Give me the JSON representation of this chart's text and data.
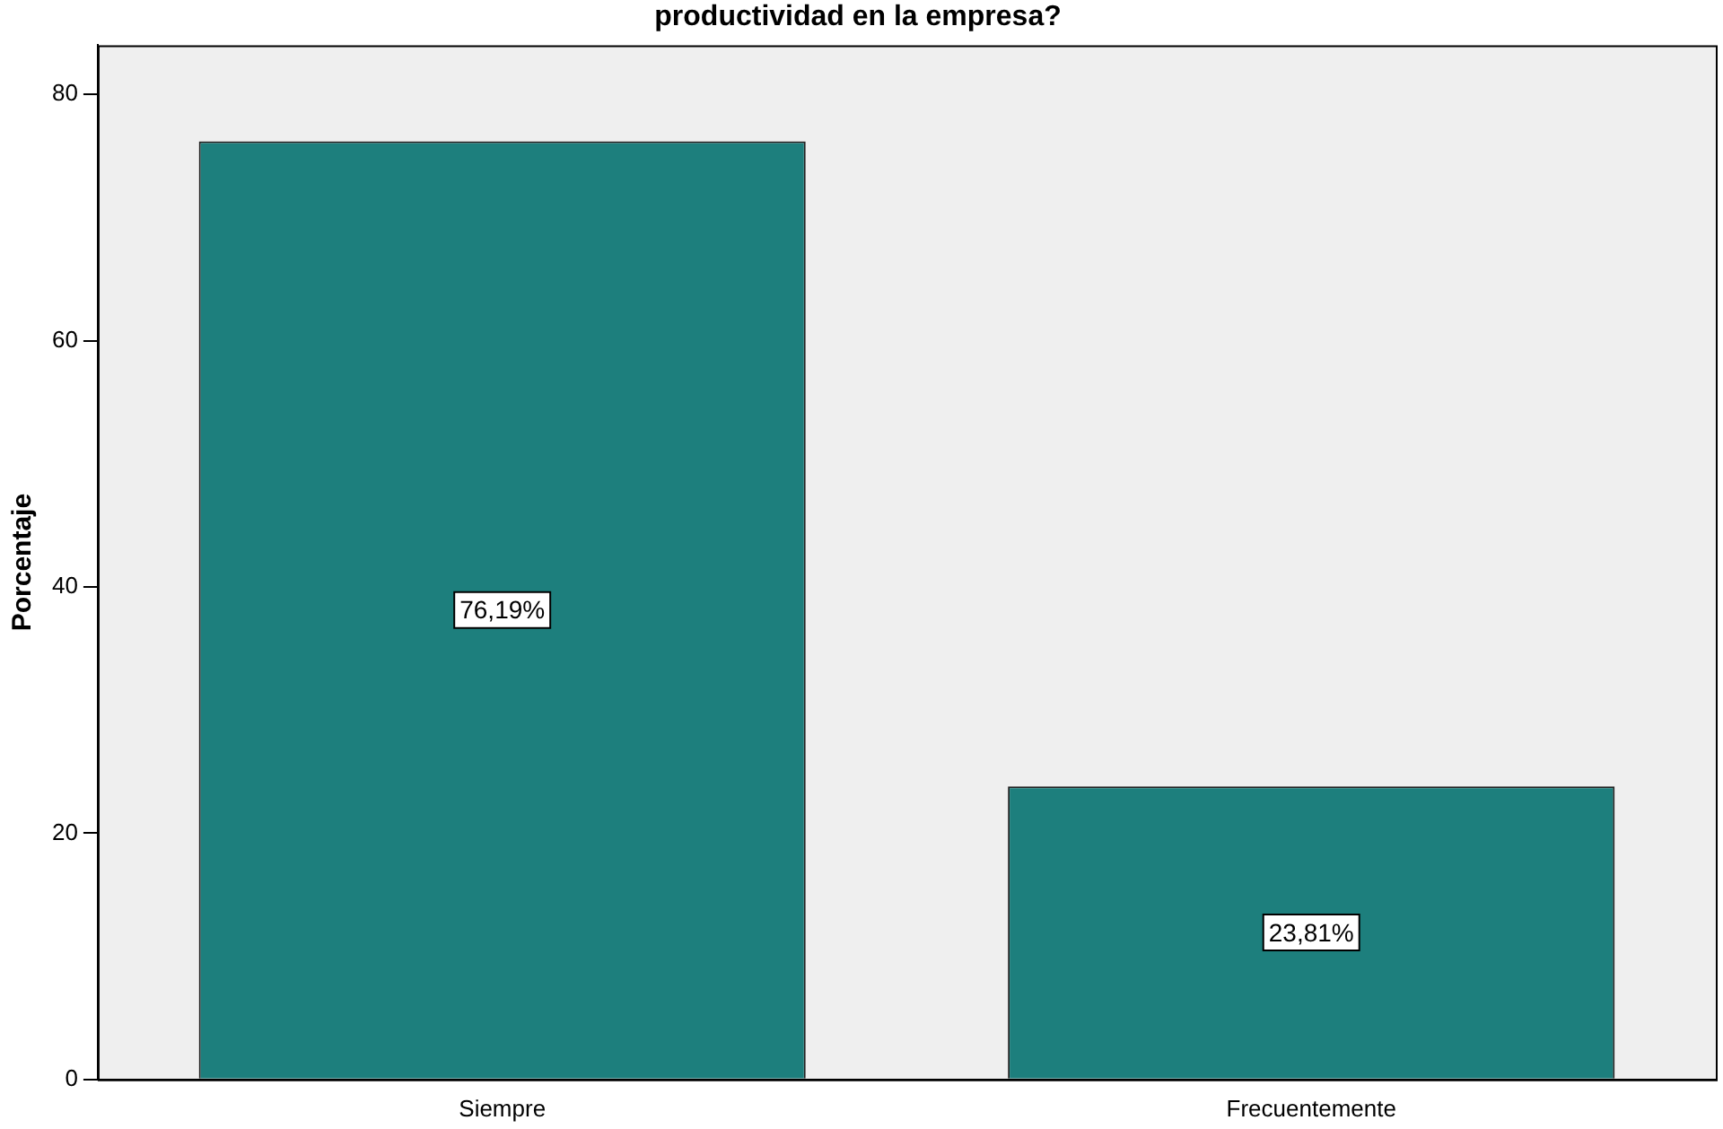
{
  "chart_data": {
    "type": "bar",
    "title": "productividad en la empresa?",
    "ylabel": "Porcentaje",
    "categories": [
      "Siempre",
      "Frecuentemente"
    ],
    "values": [
      76.19,
      23.81
    ],
    "color": "#1d7f7d",
    "value_labels": [
      "76,19%",
      "23,81%"
    ],
    "ylim": [
      0,
      84
    ],
    "yticks": [
      0,
      20,
      40,
      60,
      80
    ],
    "grid": false,
    "legend": false
  }
}
